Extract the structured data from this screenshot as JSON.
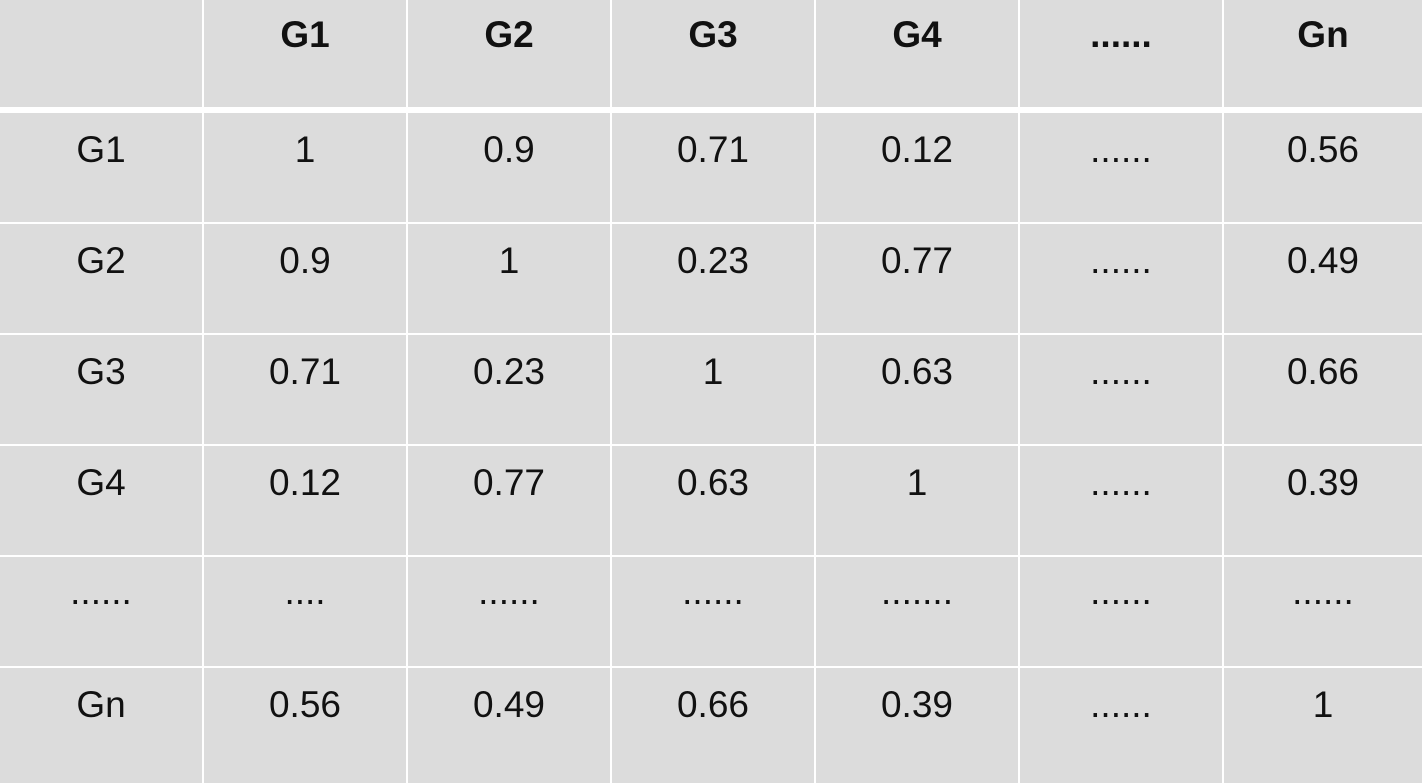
{
  "table": {
    "corner": "",
    "columns": [
      "G1",
      "G2",
      "G3",
      "G4",
      "......",
      "Gn"
    ],
    "rows": [
      {
        "label": "G1",
        "cells": [
          "1",
          "0.9",
          "0.71",
          "0.12",
          "......",
          "0.56"
        ]
      },
      {
        "label": "G2",
        "cells": [
          "0.9",
          "1",
          "0.23",
          "0.77",
          "......",
          "0.49"
        ]
      },
      {
        "label": "G3",
        "cells": [
          "0.71",
          "0.23",
          "1",
          "0.63",
          "......",
          "0.66"
        ]
      },
      {
        "label": "G4",
        "cells": [
          "0.12",
          "0.77",
          "0.63",
          "1",
          "......",
          "0.39"
        ]
      },
      {
        "label": "......",
        "cells": [
          "....",
          "......",
          "......",
          ".......",
          "......",
          "......"
        ]
      },
      {
        "label": "Gn",
        "cells": [
          "0.56",
          "0.49",
          "0.66",
          "0.39",
          "......",
          "1"
        ]
      }
    ]
  }
}
